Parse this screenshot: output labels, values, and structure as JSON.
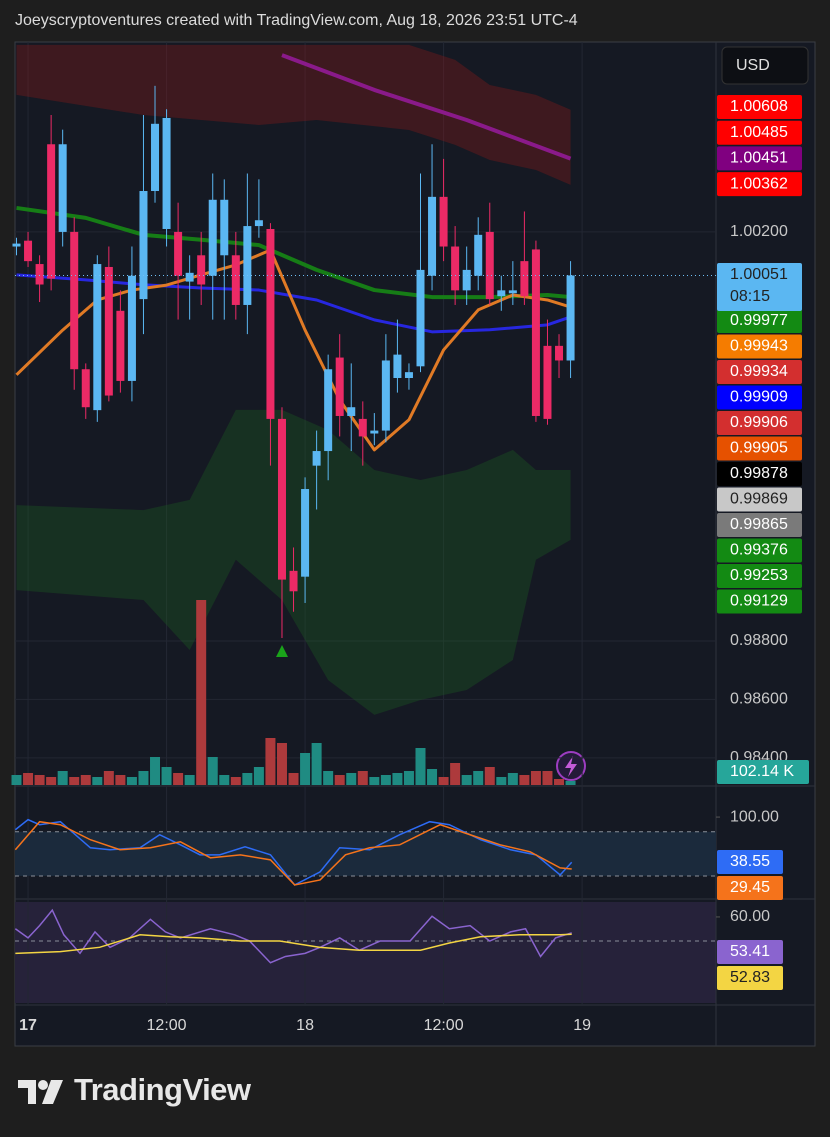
{
  "header": "Joeyscryptoventures created with TradingView.com, Aug 18, 2026 23:51 UTC-4",
  "footer": "TradingView",
  "chart_data": [
    {
      "type": "candlestick",
      "currency": "USD",
      "countdown": "08:15",
      "up_color": "#5bb7f2",
      "down_color": "#ec2a66",
      "xlim": [
        -1.13,
        59.6
      ],
      "xticks": [
        {
          "value": 0,
          "label": "17"
        },
        {
          "value": 12,
          "label": "12:00"
        },
        {
          "value": 24,
          "label": "18"
        },
        {
          "value": 36,
          "label": "12:00"
        },
        {
          "value": 48,
          "label": "19"
        }
      ],
      "ylim": [
        0.98307,
        1.0085
      ],
      "yticks": [
        {
          "value": 1.002,
          "label": "1.00200"
        },
        {
          "value": 0.988,
          "label": "0.98800"
        },
        {
          "value": 0.986,
          "label": "0.98600"
        },
        {
          "value": 0.984,
          "label": "0.98400"
        }
      ],
      "grid": true,
      "x": [
        -1,
        0,
        1,
        2,
        3,
        4,
        5,
        6,
        7,
        8,
        9,
        10,
        11,
        12,
        13,
        14,
        15,
        16,
        17,
        18,
        19,
        20,
        21,
        22,
        23,
        24,
        25,
        26,
        27,
        28,
        29,
        30,
        31,
        32,
        33,
        34,
        35,
        36,
        37,
        38,
        39,
        40,
        41,
        42,
        43,
        44,
        45,
        46,
        47
      ],
      "open": [
        1.0015,
        1.0017,
        1.0009,
        1.005,
        1.002,
        1.002,
        0.9973,
        0.9959,
        1.0008,
        0.9993,
        0.9969,
        0.9997,
        1.0034,
        1.0021,
        1.002,
        1.0003,
        1.0012,
        1.0005,
        1.0012,
        1.0012,
        0.9995,
        1.0022,
        1.0021,
        0.9956,
        0.9904,
        0.9902,
        0.994,
        0.9945,
        0.9977,
        0.9957,
        0.9956,
        0.9951,
        0.9952,
        0.997,
        0.997,
        0.9974,
        1.0005,
        1.0032,
        1.0015,
        1.0,
        1.0005,
        1.002,
        0.9998,
        0.9999,
        1.001,
        1.0014,
        0.9981,
        0.9981,
        0.9976
      ],
      "high": [
        1.0018,
        1.002,
        1.0012,
        1.006,
        1.0055,
        1.0025,
        0.9975,
        1.0012,
        1.0015,
        1.0,
        1.0015,
        1.006,
        1.007,
        1.0062,
        1.003,
        1.0012,
        1.002,
        1.004,
        1.0038,
        1.002,
        1.004,
        1.0038,
        1.0023,
        0.996,
        0.9912,
        0.9936,
        0.9952,
        0.9978,
        0.9985,
        0.9975,
        0.9962,
        0.9958,
        0.9985,
        0.999,
        0.9975,
        1.004,
        1.005,
        1.0045,
        1.0022,
        1.0015,
        1.0025,
        1.003,
        1.0005,
        1.001,
        1.0027,
        1.0017,
        0.999,
        0.9985,
        1.001
      ],
      "low": [
        1.0012,
        1.0008,
        0.9996,
        1.0,
        1.0015,
        0.9966,
        0.9956,
        0.9955,
        0.9962,
        0.9965,
        0.9962,
        0.9985,
        1.003,
        1.0015,
        0.999,
        0.999,
        0.9995,
        0.999,
        0.999,
        0.999,
        0.9985,
        1.0018,
        0.994,
        0.9881,
        0.989,
        0.9893,
        0.9925,
        0.9935,
        0.995,
        0.9945,
        0.994,
        0.9947,
        0.9948,
        0.9965,
        0.9966,
        0.9972,
        1.0,
        1.001,
        0.9995,
        0.9995,
        1.0,
        0.9995,
        0.9993,
        0.9995,
        0.9995,
        0.9955,
        0.9954,
        0.997,
        0.997
      ],
      "close": [
        1.0016,
        1.001,
        1.0002,
        1.0004,
        1.005,
        0.9973,
        0.996,
        1.0009,
        0.9964,
        0.9969,
        1.0005,
        1.0034,
        1.0057,
        1.0059,
        1.0005,
        1.0006,
        1.0002,
        1.0031,
        1.0031,
        0.9995,
        1.0022,
        1.0024,
        0.9956,
        0.9901,
        0.9897,
        0.9932,
        0.9945,
        0.9973,
        0.9957,
        0.996,
        0.995,
        0.9952,
        0.9976,
        0.9978,
        0.9972,
        1.0007,
        1.0032,
        1.0015,
        1.0,
        1.0007,
        1.0019,
        0.9997,
        1.0,
        1.0,
        0.9998,
        0.9957,
        0.9956,
        0.9976,
        1.00051
      ],
      "volume": {
        "up_color": "#1f8b82",
        "down_color": "#ad3a3c",
        "values": [
          250,
          300,
          250,
          200,
          350,
          200,
          250,
          200,
          350,
          250,
          200,
          350,
          700,
          450,
          300,
          250,
          4625,
          700,
          250,
          200,
          300,
          450,
          1175,
          1050,
          300,
          800,
          1050,
          350,
          250,
          300,
          350,
          200,
          250,
          300,
          350,
          925,
          400,
          200,
          550,
          250,
          350,
          450,
          200,
          300,
          250,
          350,
          350,
          150,
          102.14
        ],
        "value_labels": [
          null,
          null,
          null,
          null,
          null,
          null,
          null,
          null,
          null,
          null,
          null,
          null,
          null,
          null,
          null,
          null,
          null,
          null,
          null,
          null,
          null,
          null,
          null,
          null,
          null,
          null,
          null,
          null,
          null,
          null,
          null,
          null,
          null,
          null,
          null,
          null,
          null,
          null,
          null,
          null,
          null,
          null,
          null,
          null,
          null,
          null,
          null,
          null,
          "102.14 K"
        ]
      },
      "areas": [
        {
          "color": "#8b1a1a",
          "x": [
            -1,
            10,
            20,
            25,
            33,
            37,
            40,
            44,
            47
          ],
          "upper": [
            1.0084,
            1.0084,
            1.0084,
            1.0084,
            1.0084,
            1.00789,
            1.00703,
            1.00669,
            1.00618
          ],
          "lower": [
            1.00669,
            1.006,
            1.00566,
            1.00583,
            1.00549,
            1.00498,
            1.00446,
            1.00412,
            1.00361
          ]
        },
        {
          "color": "#1c5e22",
          "x": [
            -1,
            10,
            14,
            18,
            22,
            26,
            30,
            34,
            38,
            42,
            44,
            47
          ],
          "upper": [
            0.99265,
            0.99248,
            0.99283,
            0.99591,
            0.99591,
            0.99522,
            0.99385,
            0.99351,
            0.99385,
            0.99454,
            0.99385,
            0.99385
          ],
          "lower": [
            0.98974,
            0.9894,
            0.98769,
            0.99078,
            0.9894,
            0.98666,
            0.98547,
            0.98598,
            0.98632,
            0.98735,
            0.99078,
            0.99146
          ]
        }
      ],
      "lines": [
        {
          "color": "#8a1a8a",
          "width": 4,
          "x": [
            22,
            30,
            38,
            47
          ],
          "values": [
            1.00805,
            1.00686,
            1.00583,
            1.00451
          ]
        },
        {
          "color": "#167d16",
          "width": 4,
          "x": [
            -1,
            5,
            10,
            15,
            20,
            25,
            30,
            35,
            40,
            45,
            47
          ],
          "values": [
            1.00282,
            1.00248,
            1.0019,
            1.00173,
            1.00155,
            1.0007,
            1.00001,
            0.99977,
            0.99977,
            0.99984,
            0.99977
          ]
        },
        {
          "color": "#2727e0",
          "width": 3,
          "x": [
            -1,
            5,
            10,
            15,
            20,
            25,
            30,
            35,
            40,
            45,
            47
          ],
          "values": [
            1.00053,
            1.00036,
            1.00019,
            1.00008,
            1.00001,
            0.99967,
            0.99899,
            0.99858,
            0.99865,
            0.99882,
            0.99909
          ]
        },
        {
          "color": "#e07a25",
          "width": 3,
          "x": [
            -1,
            3,
            6,
            9,
            12,
            15,
            18,
            21,
            24,
            27,
            30,
            33,
            36,
            39,
            42,
            45,
            47
          ],
          "values": [
            0.99711,
            0.99864,
            0.99967,
            1.00001,
            1.00018,
            1.00053,
            1.00087,
            1.00138,
            0.99864,
            0.99625,
            0.99454,
            0.99557,
            0.99796,
            0.99933,
            0.99984,
            0.99967,
            0.99943
          ]
        }
      ],
      "price_labels": [
        {
          "value": 1.00608,
          "color": "#ff0000"
        },
        {
          "value": 1.00485,
          "color": "#ff0000"
        },
        {
          "value": 1.00451,
          "color": "#800080"
        },
        {
          "value": 1.00362,
          "color": "#ff0000"
        },
        {
          "value": 0.99977,
          "color": "#138a13"
        },
        {
          "value": 0.99943,
          "color": "#f57c00"
        },
        {
          "value": 0.99934,
          "color": "#d32f2f"
        },
        {
          "value": 0.99909,
          "color": "#0000ff"
        },
        {
          "value": 0.99906,
          "color": "#d32f2f"
        },
        {
          "value": 0.99905,
          "color": "#e65100"
        },
        {
          "value": 0.99878,
          "color": "#000000"
        },
        {
          "value": 0.99869,
          "color": "#c8c8c8"
        },
        {
          "value": 0.99865,
          "color": "#7a7a7a"
        },
        {
          "value": 0.99376,
          "color": "#138a13"
        },
        {
          "value": 0.99253,
          "color": "#138a13"
        },
        {
          "value": 0.99129,
          "color": "#138a13"
        }
      ]
    },
    {
      "type": "line",
      "ylim": [
        -8.6,
        139.5
      ],
      "yticks": [
        {
          "value": 100,
          "label": "100.00"
        }
      ],
      "levels": [
        80,
        20
      ],
      "band_color": "#1b2a3c",
      "series": [
        {
          "color": "#2e6cf5",
          "x": [
            -1.1,
            0,
            1,
            2.8,
            5.4,
            7.1,
            9.7,
            11.4,
            13.2,
            14.9,
            16.6,
            18.8,
            21,
            23.1,
            25.3,
            27,
            29.6,
            32.2,
            34.8,
            36.5,
            39.2,
            41.8,
            44,
            46.1,
            47.1
          ],
          "values": [
            82.8,
            96.5,
            89.6,
            93.7,
            58.3,
            55.6,
            58.3,
            76.0,
            62.3,
            48.7,
            48.7,
            59.6,
            48.7,
            7.8,
            25.5,
            58.3,
            55.6,
            76.0,
            93.7,
            89.6,
            69.2,
            55.6,
            48.7,
            21.4,
            38.55
          ]
        },
        {
          "color": "#f5731b",
          "x": [
            -1.1,
            1,
            2.8,
            5.4,
            7.97,
            10.6,
            13.2,
            15.8,
            18.4,
            21,
            23.1,
            25.3,
            27.5,
            29.6,
            32.2,
            35.7,
            38.3,
            40.9,
            43.5,
            46.1,
            47.1
          ],
          "values": [
            55.6,
            93.7,
            89.6,
            69.2,
            55.6,
            58.3,
            66.4,
            44.6,
            48.7,
            41.9,
            7.8,
            14.6,
            48.7,
            58.3,
            62.3,
            89.6,
            76.0,
            62.3,
            52.8,
            31.0,
            29.45
          ]
        }
      ]
    },
    {
      "type": "line",
      "ylim": [
        24.3,
        66.2
      ],
      "yticks": [
        {
          "value": 60,
          "label": "60.00"
        }
      ],
      "levels": [
        50
      ],
      "band_color": "#26223a",
      "series": [
        {
          "color": "#8a64cf",
          "x": [
            -1.1,
            0,
            1,
            2.1,
            3.1,
            4.5,
            5.8,
            7.1,
            8.8,
            10.6,
            11.9,
            13.2,
            15.8,
            17.9,
            19.2,
            21,
            22.3,
            24,
            25.3,
            27,
            28.7,
            30.5,
            33.1,
            35,
            36.5,
            38.3,
            40,
            41.8,
            43.1,
            44.4,
            45.7,
            47.1
          ],
          "values": [
            55.1,
            51.3,
            56.4,
            62.8,
            52.6,
            44.9,
            53.8,
            47.4,
            51.3,
            59.0,
            53.8,
            51.3,
            55.1,
            52.6,
            50,
            41.0,
            43.6,
            44.9,
            47.4,
            51.3,
            46.2,
            50,
            50,
            60.3,
            55.1,
            56.4,
            50,
            53.8,
            55.1,
            43.6,
            51.3,
            53.41
          ]
        },
        {
          "color": "#f3d543",
          "x": [
            -1.1,
            2.8,
            6.2,
            9.7,
            12.3,
            14.9,
            18.4,
            21.8,
            25.3,
            28.7,
            34,
            36.5,
            39.2,
            42.6,
            46.1,
            47.1
          ],
          "values": [
            44.9,
            45.6,
            47.4,
            52.6,
            51.8,
            51.3,
            50,
            50,
            47.4,
            46.2,
            46.2,
            49.2,
            51.8,
            52.6,
            52.6,
            52.83
          ]
        }
      ]
    }
  ]
}
